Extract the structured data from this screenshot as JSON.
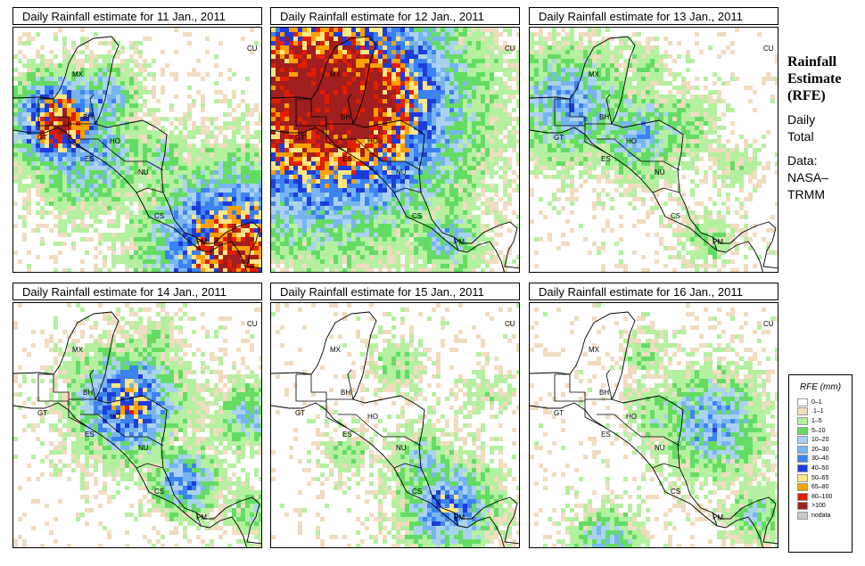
{
  "panels": [
    {
      "title": "Daily Rainfall estimate for  11 Jan., 2011",
      "seed": 11,
      "rain": [
        [
          0.18,
          0.38,
          0.9,
          8
        ],
        [
          0.28,
          0.5,
          0.55,
          10
        ],
        [
          0.35,
          0.28,
          0.55,
          6
        ],
        [
          0.58,
          0.52,
          0.4,
          5
        ],
        [
          0.88,
          0.9,
          0.9,
          14
        ],
        [
          0.85,
          0.6,
          0.4,
          4
        ],
        [
          0.1,
          0.25,
          0.3,
          4
        ]
      ]
    },
    {
      "title": "Daily Rainfall estimate for  12 Jan., 2011",
      "seed": 12,
      "rain": [
        [
          0.18,
          0.28,
          1.0,
          22
        ],
        [
          0.28,
          0.3,
          1.0,
          20
        ],
        [
          0.2,
          0.35,
          0.85,
          12
        ],
        [
          0.55,
          0.6,
          0.45,
          6
        ],
        [
          0.7,
          0.85,
          0.5,
          6
        ],
        [
          0.45,
          0.15,
          0.3,
          4
        ]
      ]
    },
    {
      "title": "Daily Rainfall estimate for  13 Jan., 2011",
      "seed": 13,
      "rain": [
        [
          0.15,
          0.3,
          0.55,
          10
        ],
        [
          0.42,
          0.42,
          0.5,
          8
        ],
        [
          0.6,
          0.4,
          0.35,
          6
        ],
        [
          0.8,
          0.55,
          0.3,
          4
        ],
        [
          0.45,
          0.15,
          0.3,
          4
        ],
        [
          0.7,
          0.85,
          0.3,
          5
        ]
      ]
    },
    {
      "title": "Daily Rainfall estimate for  14 Jan., 2011",
      "seed": 14,
      "rain": [
        [
          0.45,
          0.4,
          0.75,
          9
        ],
        [
          0.68,
          0.72,
          0.6,
          6
        ],
        [
          0.93,
          0.45,
          0.45,
          6
        ],
        [
          0.95,
          0.85,
          0.35,
          5
        ],
        [
          0.3,
          0.3,
          0.35,
          5
        ],
        [
          0.55,
          0.15,
          0.3,
          4
        ]
      ]
    },
    {
      "title": "Daily Rainfall estimate for  15 Jan., 2011",
      "seed": 15,
      "rain": [
        [
          0.7,
          0.82,
          0.65,
          8
        ],
        [
          0.6,
          0.65,
          0.45,
          6
        ],
        [
          0.5,
          0.25,
          0.3,
          5
        ],
        [
          0.85,
          0.35,
          0.25,
          4
        ],
        [
          0.3,
          0.6,
          0.3,
          4
        ]
      ]
    },
    {
      "title": "Daily Rainfall estimate for  16 Jan., 2011",
      "seed": 16,
      "rain": [
        [
          0.72,
          0.48,
          0.55,
          9
        ],
        [
          0.55,
          0.45,
          0.4,
          6
        ],
        [
          0.3,
          0.97,
          0.5,
          6
        ],
        [
          0.9,
          0.85,
          0.4,
          5
        ],
        [
          0.45,
          0.2,
          0.3,
          4
        ]
      ]
    }
  ],
  "country_labels": [
    "MX",
    "BH",
    "GT",
    "HO",
    "ES",
    "NU",
    "CS",
    "PM",
    "CU"
  ],
  "side": {
    "title_1": "Rainfall",
    "title_2": "Estimate",
    "title_3": "(RFE)",
    "line_1": "Daily",
    "line_2": "Total",
    "line_3": "Data:",
    "line_4": "NASA–",
    "line_5": "TRMM"
  },
  "legend": {
    "title": "RFE (mm)",
    "items": [
      {
        "label": "0–1",
        "color": "#ffffff"
      },
      {
        "label": ".1–1",
        "color": "#f0dcc0"
      },
      {
        "label": "1–5",
        "color": "#b4f0a0"
      },
      {
        "label": "5–10",
        "color": "#64dc64"
      },
      {
        "label": "10–20",
        "color": "#aad2f0"
      },
      {
        "label": "20–30",
        "color": "#78b4f0"
      },
      {
        "label": "30–40",
        "color": "#3c82f0"
      },
      {
        "label": "40–50",
        "color": "#1e3cdc"
      },
      {
        "label": "50–65",
        "color": "#ffe682"
      },
      {
        "label": "65–80",
        "color": "#ffa000"
      },
      {
        "label": "80–100",
        "color": "#e11e00"
      },
      {
        ">": true,
        "label": ">100",
        "color": "#a01e1e"
      },
      {
        "label": "nodata",
        "color": "#c8c8c8"
      }
    ]
  }
}
